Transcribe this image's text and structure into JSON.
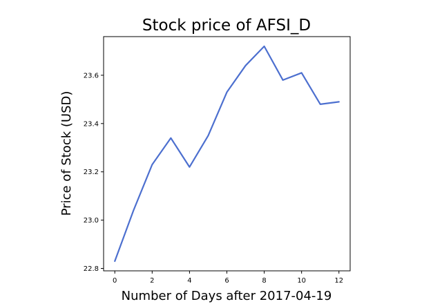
{
  "chart_data": {
    "type": "line",
    "title": "Stock price of AFSI_D",
    "xlabel": "Number of Days after 2017-04-19",
    "ylabel": "Price of Stock (USD)",
    "x": [
      0,
      1,
      2,
      3,
      4,
      5,
      6,
      7,
      8,
      9,
      10,
      11,
      12
    ],
    "series": [
      {
        "values": [
          22.83,
          23.04,
          23.23,
          23.34,
          23.22,
          23.35,
          23.53,
          23.64,
          23.72,
          23.58,
          23.61,
          23.48,
          23.49
        ],
        "color": "#4c6fcf"
      }
    ],
    "xlim": [
      -0.6,
      12.6
    ],
    "ylim": [
      22.79,
      23.76
    ],
    "xticks": [
      "0",
      "2",
      "4",
      "6",
      "8",
      "10",
      "12"
    ],
    "yticks": [
      "22.8",
      "23.0",
      "23.2",
      "23.4",
      "23.6"
    ],
    "grid": false
  }
}
